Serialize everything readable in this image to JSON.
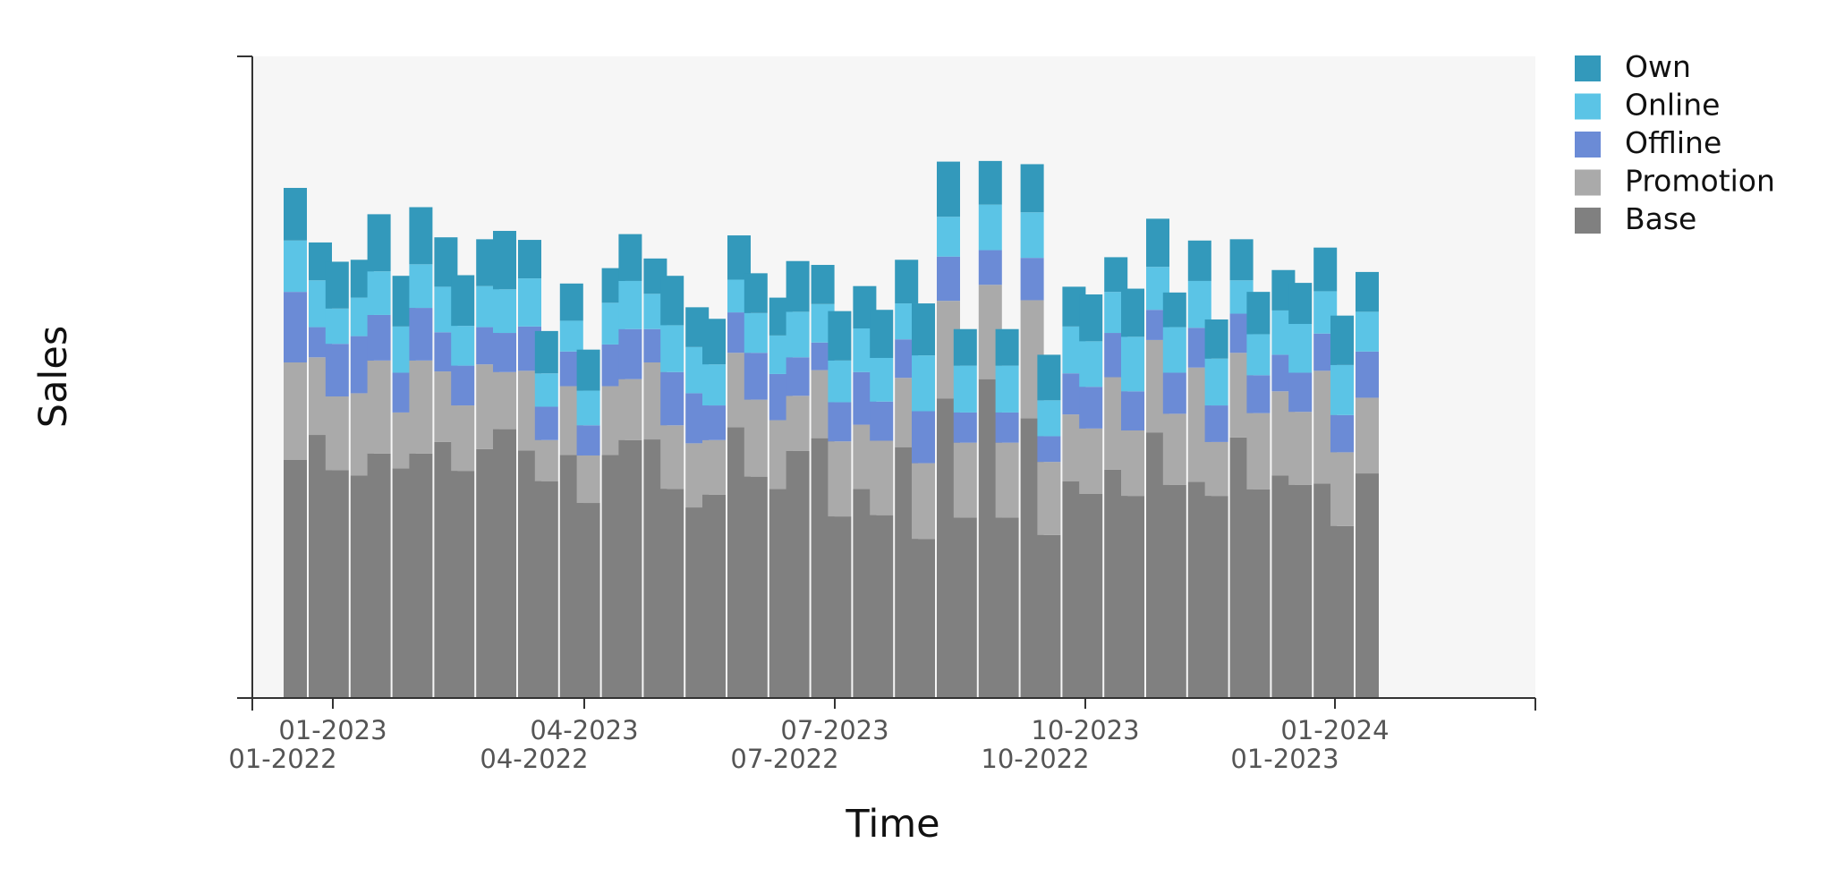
{
  "chart_data": {
    "type": "bar",
    "stacked": true,
    "grouped": true,
    "xlabel": "Time",
    "ylabel": "Sales",
    "grid": false,
    "legend_position": "top-right",
    "x_ticks_primary": [
      "01-2023",
      "04-2023",
      "07-2023",
      "10-2023",
      "01-2024"
    ],
    "x_ticks_secondary": [
      "01-2022",
      "04-2022",
      "07-2022",
      "10-2022",
      "01-2023"
    ],
    "ylim": [
      0,
      100
    ],
    "legend": [
      {
        "key": "own",
        "label": "Own",
        "color": "#3399BB"
      },
      {
        "key": "online",
        "label": "Online",
        "color": "#5BC4E6"
      },
      {
        "key": "offline",
        "label": "Offline",
        "color": "#6B8BD6"
      },
      {
        "key": "promotion",
        "label": "Promotion",
        "color": "#AAAAAA"
      },
      {
        "key": "base",
        "label": "Base",
        "color": "#808080"
      }
    ],
    "series": [
      {
        "name": "01-2023",
        "base": [
          37.1,
          35.5,
          38.1,
          38.1,
          35.4,
          41.9,
          33.8,
          30.4,
          40.2,
          32.6,
          31.7,
          34.5,
          38.5,
          28.3,
          28.5,
          24.8,
          28.1,
          28.1,
          25.4,
          31.8,
          31.5,
          33.2,
          31.5,
          32.5,
          33.2,
          26.8
        ],
        "promotion": [
          15.2,
          11.5,
          14.5,
          14.5,
          10.2,
          8.9,
          6.4,
          7.4,
          9.5,
          9.9,
          8.5,
          12.0,
          8.6,
          11.7,
          11.6,
          11.8,
          11.7,
          11.7,
          11.4,
          10.2,
          10.2,
          11.1,
          8.4,
          11.9,
          11.4,
          11.5
        ],
        "offline": [
          11.0,
          8.2,
          7.1,
          8.2,
          6.2,
          6.1,
          5.2,
          4.7,
          7.8,
          8.3,
          5.4,
          7.3,
          6.0,
          6.1,
          6.1,
          8.1,
          4.7,
          4.7,
          4.0,
          6.5,
          6.1,
          6.4,
          5.7,
          5.9,
          6.1,
          5.8
        ],
        "online": [
          8.0,
          5.5,
          6.8,
          6.8,
          6.2,
          6.8,
          5.2,
          5.4,
          7.5,
          7.3,
          6.4,
          6.2,
          7.1,
          6.5,
          6.8,
          8.7,
          7.3,
          7.3,
          5.6,
          7.1,
          8.5,
          7.1,
          7.3,
          6.4,
          7.6,
          7.8
        ],
        "own": [
          8.2,
          7.3,
          8.9,
          8.9,
          7.9,
          9.1,
          6.6,
          6.4,
          7.3,
          7.7,
          7.1,
          6.2,
          7.9,
          7.7,
          7.5,
          8.1,
          5.7,
          5.7,
          7.1,
          7.3,
          7.5,
          5.4,
          6.1,
          6.6,
          6.4,
          7.7
        ]
      },
      {
        "name": "01-2022",
        "base": [
          41.0,
          34.7,
          35.8,
          39.9,
          38.8,
          38.6,
          37.9,
          37.9,
          40.3,
          29.7,
          42.2,
          32.6,
          40.5,
          32.6,
          39.1,
          46.7,
          49.7,
          43.6,
          33.8,
          35.6,
          41.4,
          33.7,
          40.6,
          34.7,
          33.4,
          35.0
        ],
        "promotion": [
          12.1,
          12.8,
          8.7,
          11.0,
          13.2,
          12.4,
          10.7,
          10.7,
          12.0,
          10.0,
          11.6,
          10.7,
          10.6,
          10.0,
          10.8,
          15.2,
          14.7,
          18.4,
          10.4,
          14.4,
          14.4,
          17.8,
          13.2,
          13.1,
          17.6,
          11.8
        ],
        "offline": [
          4.7,
          8.9,
          6.2,
          6.1,
          5.8,
          6.9,
          5.4,
          6.5,
          5.2,
          7.8,
          6.3,
          7.2,
          4.3,
          8.2,
          6.0,
          6.9,
          5.4,
          6.6,
          6.4,
          6.9,
          4.7,
          6.2,
          6.1,
          5.7,
          5.8,
          7.2
        ],
        "online": [
          7.3,
          6.0,
          7.2,
          7.1,
          6.4,
          7.5,
          4.8,
          6.5,
          5.5,
          7.2,
          5.1,
          6.0,
          6.0,
          6.8,
          5.6,
          6.2,
          7.1,
          7.1,
          7.3,
          6.4,
          6.7,
          7.3,
          5.2,
          6.9,
          6.6,
          6.2
        ],
        "own": [
          5.9,
          5.9,
          7.9,
          7.7,
          7.3,
          6.0,
          5.8,
          5.4,
          5.5,
          6.2,
          6.9,
          5.9,
          6.1,
          6.6,
          6.8,
          8.6,
          6.8,
          7.5,
          6.2,
          5.4,
          7.5,
          6.3,
          6.4,
          6.3,
          6.8,
          6.2
        ]
      }
    ]
  }
}
